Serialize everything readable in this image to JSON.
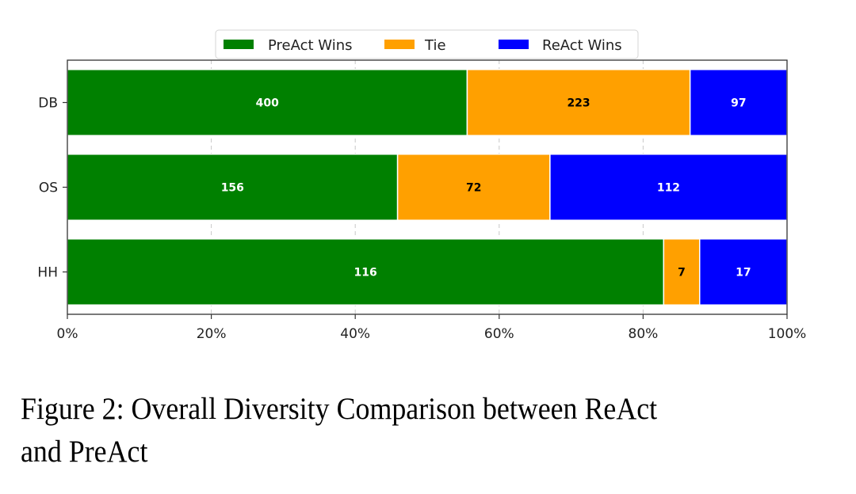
{
  "chart_data": {
    "type": "bar",
    "orientation": "horizontal",
    "stacked": true,
    "normalized": true,
    "title": "",
    "xlabel": "",
    "ylabel": "",
    "xlim": [
      0,
      100
    ],
    "x_ticks": [
      "0%",
      "20%",
      "40%",
      "60%",
      "80%",
      "100%"
    ],
    "categories": [
      "DB",
      "OS",
      "HH"
    ],
    "series": [
      {
        "name": "PreAct Wins",
        "color": "#008000",
        "label_color": "#ffffff",
        "values": [
          400,
          156,
          116
        ]
      },
      {
        "name": "Tie",
        "color": "#ffa000",
        "label_color": "#000000",
        "values": [
          223,
          72,
          7
        ]
      },
      {
        "name": "ReAct Wins",
        "color": "#0000ff",
        "label_color": "#ffffff",
        "values": [
          97,
          112,
          17
        ]
      }
    ],
    "grid": "vertical dashed",
    "legend_position": "top-center"
  },
  "caption": {
    "line1": "Figure 2: Overall Diversity Comparison between ReAct",
    "line2": "and PreAct"
  }
}
